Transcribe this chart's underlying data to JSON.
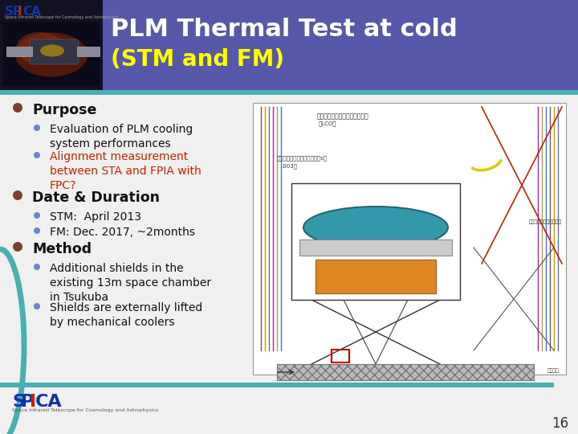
{
  "bg_color": "#f0f0f0",
  "header_bg": "#5858aa",
  "title_line1": "PLM Thermal Test at cold",
  "title_line2": "(STM and FM)",
  "title_color": "#ffffff",
  "subtitle_color": "#ffff00",
  "slide_number": "16",
  "bullet_color": "#7a4030",
  "sub_bullet_color": "#6688cc",
  "red_text_color": "#cc2200",
  "teal_accent": "#4aafaf",
  "body_items": [
    {
      "level": 0,
      "text": "Purpose",
      "color": "#111111"
    },
    {
      "level": 1,
      "text": "Evaluation of PLM cooling\nsystem performances",
      "color": "#111111"
    },
    {
      "level": 1,
      "text": "Alignment measurement\nbetween STA and FPIA with\nFPC?",
      "color": "#cc2200"
    },
    {
      "level": 0,
      "text": "Date & Duration",
      "color": "#111111"
    },
    {
      "level": 1,
      "text": "STM:  April 2013",
      "color": "#111111"
    },
    {
      "level": 1,
      "text": "FM: Dec. 2017, ~2months",
      "color": "#111111"
    },
    {
      "level": 0,
      "text": "Method",
      "color": "#111111"
    },
    {
      "level": 1,
      "text": "Additional shields in the\nexisting 13m space chamber\nin Tsukuba",
      "color": "#111111"
    },
    {
      "level": 1,
      "text": "Shields are externally lifted\nby mechanical coolers",
      "color": "#111111"
    }
  ],
  "logo_bg": "#1a1a2e",
  "logo_text_color": "#ffffff",
  "spica_colors": [
    "#222288",
    "#cc2200",
    "#222288",
    "#cc2200",
    "#222288"
  ]
}
